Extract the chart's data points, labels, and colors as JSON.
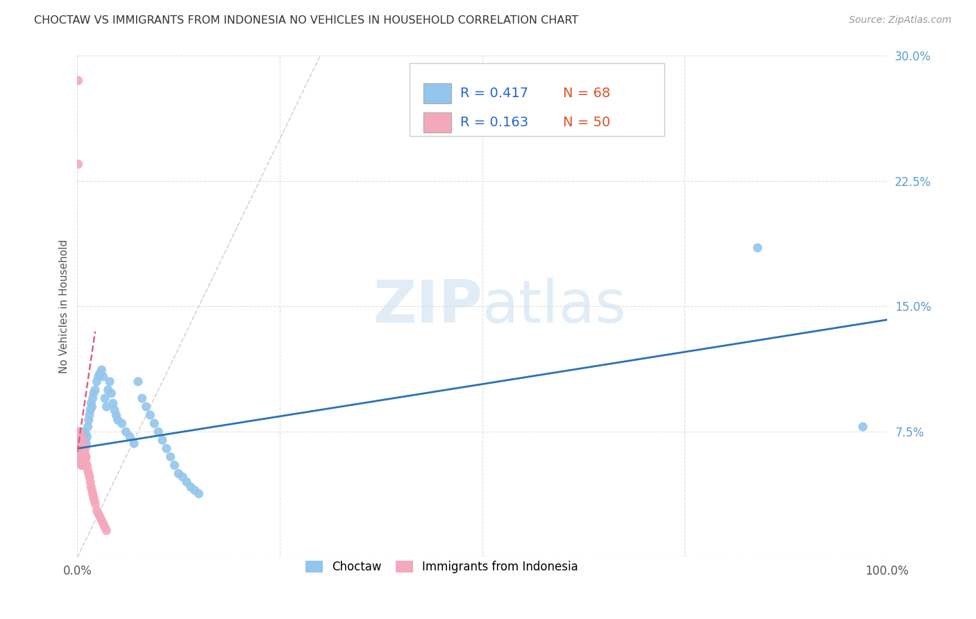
{
  "title": "CHOCTAW VS IMMIGRANTS FROM INDONESIA NO VEHICLES IN HOUSEHOLD CORRELATION CHART",
  "source": "Source: ZipAtlas.com",
  "ylabel": "No Vehicles in Household",
  "xlim": [
    0,
    1.0
  ],
  "ylim": [
    0,
    0.3
  ],
  "legend_labels": [
    "Choctaw",
    "Immigrants from Indonesia"
  ],
  "blue_color": "#93C6EC",
  "pink_color": "#F4A8BC",
  "blue_line_color": "#2872B8",
  "pink_line_color": "#E06080",
  "diag_color": "#C8C8C8",
  "R_blue": 0.417,
  "N_blue": 68,
  "R_pink": 0.163,
  "N_pink": 50,
  "watermark": "ZIPatlas",
  "blue_x": [
    0.001,
    0.001,
    0.002,
    0.002,
    0.003,
    0.003,
    0.004,
    0.004,
    0.005,
    0.005,
    0.005,
    0.006,
    0.006,
    0.007,
    0.007,
    0.008,
    0.008,
    0.009,
    0.009,
    0.01,
    0.01,
    0.011,
    0.012,
    0.013,
    0.014,
    0.015,
    0.016,
    0.017,
    0.018,
    0.019,
    0.02,
    0.022,
    0.024,
    0.026,
    0.028,
    0.03,
    0.032,
    0.034,
    0.036,
    0.038,
    0.04,
    0.042,
    0.044,
    0.046,
    0.048,
    0.05,
    0.055,
    0.06,
    0.065,
    0.07,
    0.075,
    0.08,
    0.085,
    0.09,
    0.095,
    0.1,
    0.105,
    0.11,
    0.115,
    0.12,
    0.125,
    0.13,
    0.135,
    0.14,
    0.145,
    0.15,
    0.84,
    0.97
  ],
  "blue_y": [
    0.06,
    0.068,
    0.062,
    0.072,
    0.058,
    0.065,
    0.063,
    0.07,
    0.055,
    0.062,
    0.072,
    0.06,
    0.068,
    0.065,
    0.075,
    0.058,
    0.07,
    0.062,
    0.073,
    0.06,
    0.074,
    0.068,
    0.072,
    0.078,
    0.082,
    0.085,
    0.088,
    0.092,
    0.09,
    0.095,
    0.098,
    0.1,
    0.105,
    0.108,
    0.11,
    0.112,
    0.108,
    0.095,
    0.09,
    0.1,
    0.105,
    0.098,
    0.092,
    0.088,
    0.085,
    0.082,
    0.08,
    0.075,
    0.072,
    0.068,
    0.105,
    0.095,
    0.09,
    0.085,
    0.08,
    0.075,
    0.07,
    0.065,
    0.06,
    0.055,
    0.05,
    0.048,
    0.045,
    0.042,
    0.04,
    0.038,
    0.185,
    0.078
  ],
  "pink_x": [
    0.001,
    0.001,
    0.001,
    0.001,
    0.001,
    0.002,
    0.002,
    0.002,
    0.002,
    0.003,
    0.003,
    0.003,
    0.004,
    0.004,
    0.004,
    0.005,
    0.005,
    0.005,
    0.006,
    0.006,
    0.006,
    0.007,
    0.007,
    0.008,
    0.008,
    0.009,
    0.009,
    0.01,
    0.01,
    0.011,
    0.012,
    0.013,
    0.014,
    0.015,
    0.016,
    0.017,
    0.018,
    0.019,
    0.02,
    0.021,
    0.022,
    0.024,
    0.026,
    0.028,
    0.03,
    0.032,
    0.034,
    0.036,
    0.001,
    0.001
  ],
  "pink_y": [
    0.06,
    0.065,
    0.068,
    0.072,
    0.075,
    0.058,
    0.062,
    0.068,
    0.075,
    0.06,
    0.065,
    0.072,
    0.058,
    0.062,
    0.068,
    0.06,
    0.065,
    0.072,
    0.055,
    0.06,
    0.068,
    0.058,
    0.065,
    0.06,
    0.068,
    0.055,
    0.062,
    0.058,
    0.065,
    0.06,
    0.055,
    0.052,
    0.05,
    0.048,
    0.045,
    0.042,
    0.04,
    0.038,
    0.036,
    0.034,
    0.032,
    0.028,
    0.026,
    0.024,
    0.022,
    0.02,
    0.018,
    0.016,
    0.285,
    0.235
  ],
  "blue_line_x": [
    0.0,
    1.0
  ],
  "blue_line_y": [
    0.065,
    0.142
  ],
  "pink_line_x": [
    0.0,
    0.022
  ],
  "pink_line_y": [
    0.063,
    0.135
  ],
  "diag_line_x": [
    0.0,
    0.3
  ],
  "diag_line_y": [
    0.0,
    0.3
  ]
}
